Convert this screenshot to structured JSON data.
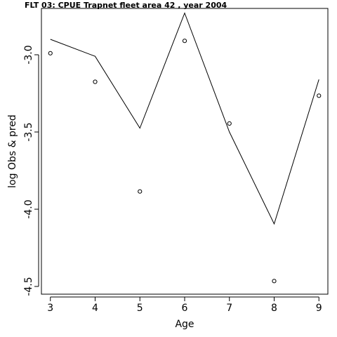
{
  "chart_data": {
    "type": "line",
    "title": "FLT 03:    CPUE       Trapnet   fleet        area        42             , year 2004",
    "xlabel": "Age",
    "ylabel": "log Obs & pred",
    "xlim": [
      2.8,
      9.2
    ],
    "ylim": [
      -4.55,
      -2.7
    ],
    "x_ticks": [
      3,
      4,
      5,
      6,
      7,
      8,
      9
    ],
    "y_ticks": [
      -3.0,
      -3.5,
      -4.0,
      -4.5
    ],
    "y_tick_labels": [
      "-3.0",
      "-3.5",
      "-4.0",
      "-4.5"
    ],
    "grid": false,
    "series": [
      {
        "style": "points",
        "x": [
          3,
          4,
          5,
          6,
          7,
          8,
          9
        ],
        "y": [
          -2.99,
          -3.175,
          -3.885,
          -2.91,
          -3.445,
          -4.465,
          -3.265
        ]
      },
      {
        "style": "line",
        "x": [
          3,
          4,
          5,
          6,
          7,
          8,
          9
        ],
        "y": [
          -2.9,
          -3.01,
          -3.475,
          -2.73,
          -3.5,
          -4.095,
          -3.16
        ]
      }
    ]
  }
}
